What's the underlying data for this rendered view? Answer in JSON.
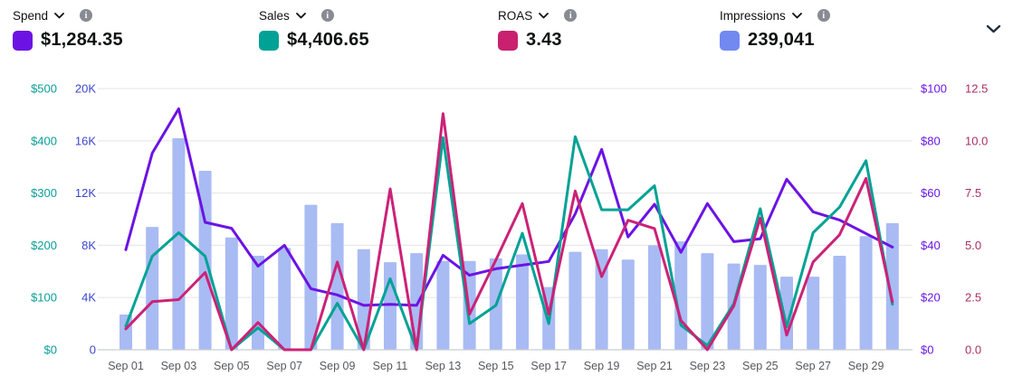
{
  "header": {
    "metrics": [
      {
        "label": "Spend",
        "value": "$1,284.35",
        "swatch_color": "#6c13e4"
      },
      {
        "label": "Sales",
        "value": "$4,406.65",
        "swatch_color": "#00a295"
      },
      {
        "label": "ROAS",
        "value": "3.43",
        "swatch_color": "#c9216f"
      },
      {
        "label": "Impressions",
        "value": "239,041",
        "swatch_color": "#7289f2"
      }
    ]
  },
  "chart_data": {
    "type": "combo",
    "x": [
      "Sep 01",
      "Sep 02",
      "Sep 03",
      "Sep 04",
      "Sep 05",
      "Sep 06",
      "Sep 07",
      "Sep 08",
      "Sep 09",
      "Sep 10",
      "Sep 11",
      "Sep 12",
      "Sep 13",
      "Sep 14",
      "Sep 15",
      "Sep 16",
      "Sep 17",
      "Sep 18",
      "Sep 19",
      "Sep 20",
      "Sep 21",
      "Sep 22",
      "Sep 23",
      "Sep 24",
      "Sep 25",
      "Sep 26",
      "Sep 27",
      "Sep 28",
      "Sep 29",
      "Sep 30"
    ],
    "x_tick_labels": [
      "Sep 01",
      "Sep 03",
      "Sep 05",
      "Sep 07",
      "Sep 09",
      "Sep 11",
      "Sep 13",
      "Sep 15",
      "Sep 17",
      "Sep 19",
      "Sep 21",
      "Sep 23",
      "Sep 25",
      "Sep 27",
      "Sep 29"
    ],
    "grid": true,
    "legend_position": "none",
    "axes": {
      "sales": {
        "position": "left-outer",
        "color": "#0a9e98",
        "min": 0,
        "max": 500,
        "ticks": [
          "$500",
          "$400",
          "$300",
          "$200",
          "$100",
          "$0"
        ]
      },
      "impressions": {
        "position": "left-inner",
        "color": "#3b45cf",
        "min": 0,
        "max": 20000,
        "ticks": [
          "20K",
          "16K",
          "12K",
          "8K",
          "4K",
          "0"
        ]
      },
      "spend": {
        "position": "right-inner",
        "color": "#6a16e4",
        "min": 0,
        "max": 100,
        "ticks": [
          "$100",
          "$80",
          "$60",
          "$40",
          "$20",
          "$0"
        ]
      },
      "roas": {
        "position": "right-outer",
        "color": "#aa2e63",
        "min": 0,
        "max": 12.5,
        "ticks": [
          "12.5",
          "10.0",
          "7.5",
          "5.0",
          "2.5",
          "0.0"
        ]
      }
    },
    "series": [
      {
        "name": "Impressions",
        "type": "bar",
        "axis": "impressions",
        "color": "#a9bbf3",
        "values": [
          2700,
          9400,
          16200,
          13700,
          8600,
          7200,
          7800,
          11100,
          9700,
          7700,
          6700,
          7400,
          6800,
          6800,
          7000,
          7300,
          4800,
          7500,
          7700,
          6900,
          8000,
          8300,
          7400,
          6600,
          6500,
          5600,
          5600,
          7200,
          8700,
          9700
        ]
      },
      {
        "name": "Spend",
        "type": "line",
        "axis": "spend",
        "color": "#6c13e4",
        "values": [
          38.3,
          75.3,
          92.3,
          48.8,
          46.5,
          32,
          40,
          23.4,
          21,
          17,
          17.4,
          17,
          36.2,
          28.5,
          31,
          32.4,
          33.8,
          52,
          76.7,
          43.2,
          55.7,
          37.3,
          56,
          41.4,
          42.5,
          65.3,
          52.8,
          49.7,
          44.5,
          39.3
        ]
      },
      {
        "name": "Sales",
        "type": "line",
        "axis": "sales",
        "color": "#00a295",
        "values": [
          45,
          179,
          224,
          179,
          0,
          42,
          0,
          0,
          89,
          0,
          136,
          0,
          406,
          50,
          85,
          223,
          50,
          408,
          268,
          268,
          314,
          47,
          8,
          88,
          270,
          44,
          224,
          273,
          362,
          87
        ]
      },
      {
        "name": "ROAS",
        "type": "line",
        "axis": "roas",
        "color": "#cb2277",
        "values": [
          1.0,
          2.3,
          2.4,
          3.7,
          0,
          1.3,
          0,
          0,
          4.2,
          0,
          7.7,
          0,
          11.3,
          1.7,
          4.3,
          7.0,
          1.7,
          7.6,
          3.5,
          6.2,
          5.8,
          1.4,
          0,
          2.1,
          6.3,
          0.7,
          4.2,
          5.5,
          8.2,
          2.3
        ]
      }
    ]
  }
}
